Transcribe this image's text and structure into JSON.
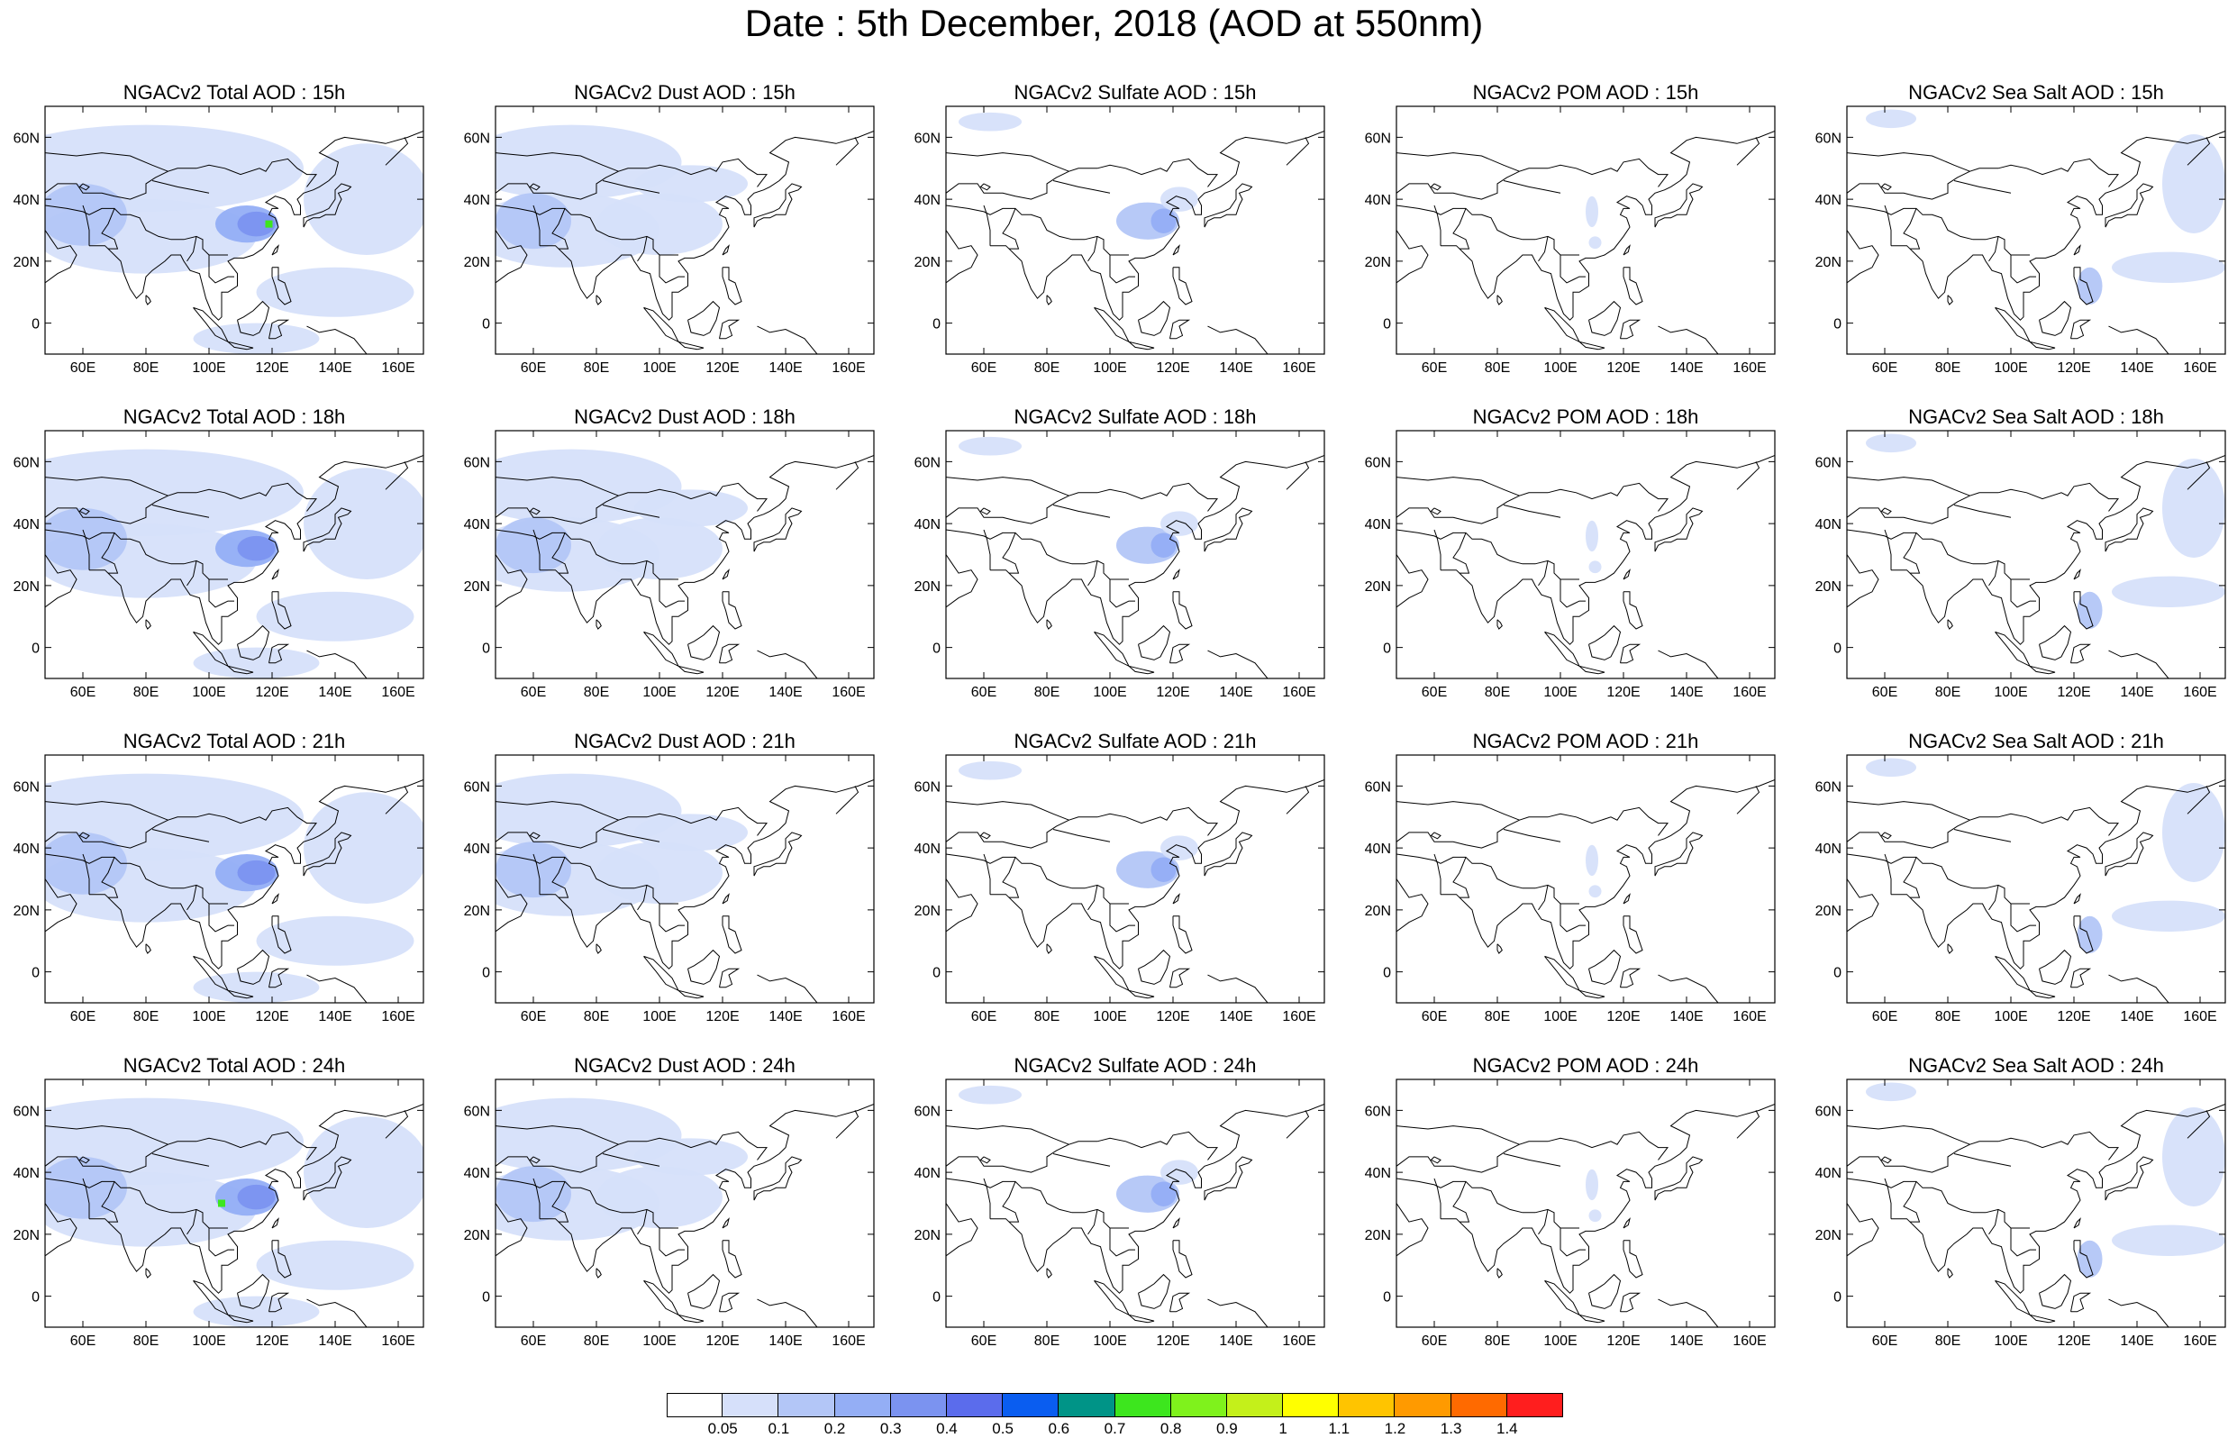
{
  "title": "Date : 5th December, 2018 (AOD at 550nm)",
  "panels": [
    [
      "NGACv2 Total AOD : 15h",
      "NGACv2 Dust AOD : 15h",
      "NGACv2 Sulfate AOD : 15h",
      "NGACv2 POM AOD : 15h",
      "NGACv2 Sea Salt AOD : 15h"
    ],
    [
      "NGACv2 Total AOD : 18h",
      "NGACv2 Dust AOD : 18h",
      "NGACv2 Sulfate AOD : 18h",
      "NGACv2 POM AOD : 18h",
      "NGACv2 Sea Salt AOD : 18h"
    ],
    [
      "NGACv2 Total AOD : 21h",
      "NGACv2 Dust AOD : 21h",
      "NGACv2 Sulfate AOD : 21h",
      "NGACv2 POM AOD : 21h",
      "NGACv2 Sea Salt AOD : 21h"
    ],
    [
      "NGACv2 Total AOD : 24h",
      "NGACv2 Dust AOD : 24h",
      "NGACv2 Sulfate AOD : 24h",
      "NGACv2 POM AOD : 24h",
      "NGACv2 Sea Salt  AOD : 24h"
    ]
  ],
  "map_axes": {
    "lat_labels": [
      "60N",
      "40N",
      "20N",
      "0"
    ],
    "lon_labels": [
      "60E",
      "80E",
      "100E",
      "120E",
      "140E",
      "160E"
    ]
  },
  "colorbar": {
    "labels": [
      "0.05",
      "0.1",
      "0.2",
      "0.3",
      "0.4",
      "0.5",
      "0.6",
      "0.7",
      "0.8",
      "0.9",
      "1",
      "1.1",
      "1.2",
      "1.3",
      "1.4"
    ],
    "colors": [
      "#ffffff",
      "#d6e0fa",
      "#b3c6f7",
      "#94aef5",
      "#7b93f0",
      "#5b6cec",
      "#0a5df0",
      "#009487",
      "#3de61e",
      "#7ff21c",
      "#c4f01a",
      "#ffff00",
      "#ffc400",
      "#ff9a00",
      "#ff6a00",
      "#ff1e1e"
    ]
  },
  "shading": {
    "light": "#d6e0fa",
    "mid": "#b3c6f7",
    "dark": "#94aef5",
    "darker": "#7b93f0",
    "hotspot": "#3de61e"
  }
}
